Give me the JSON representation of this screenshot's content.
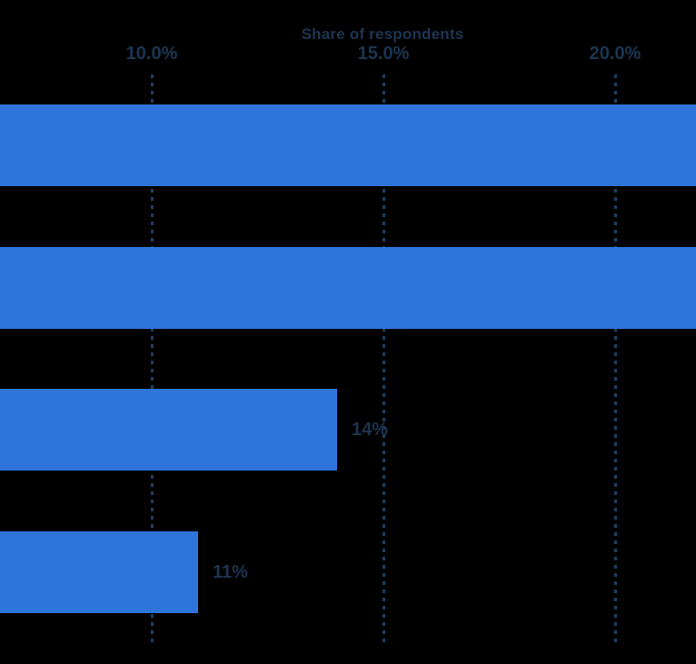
{
  "chart_data": {
    "type": "bar",
    "orientation": "horizontal",
    "title": "Share of respondents",
    "xlabel": "Share of respondents",
    "ylabel": "",
    "grid": true,
    "legend": false,
    "category_labels_visible": false,
    "x_axis": {
      "tick_labels": [
        "10.0%",
        "15.0%",
        "20.0%"
      ],
      "tick_values": [
        10,
        15,
        20
      ],
      "unit": "percent"
    },
    "bars": [
      {
        "value": null,
        "data_label": "",
        "clipped_at_right_edge": true
      },
      {
        "value": null,
        "data_label": "",
        "clipped_at_right_edge": true
      },
      {
        "value": 14,
        "data_label": "14%",
        "clipped_at_right_edge": false
      },
      {
        "value": 11,
        "data_label": "11%",
        "clipped_at_right_edge": false
      }
    ],
    "colors": {
      "bar": "#2e74da",
      "text": "#1c3551",
      "gridline": "#1d4064",
      "background": "#000000"
    }
  }
}
